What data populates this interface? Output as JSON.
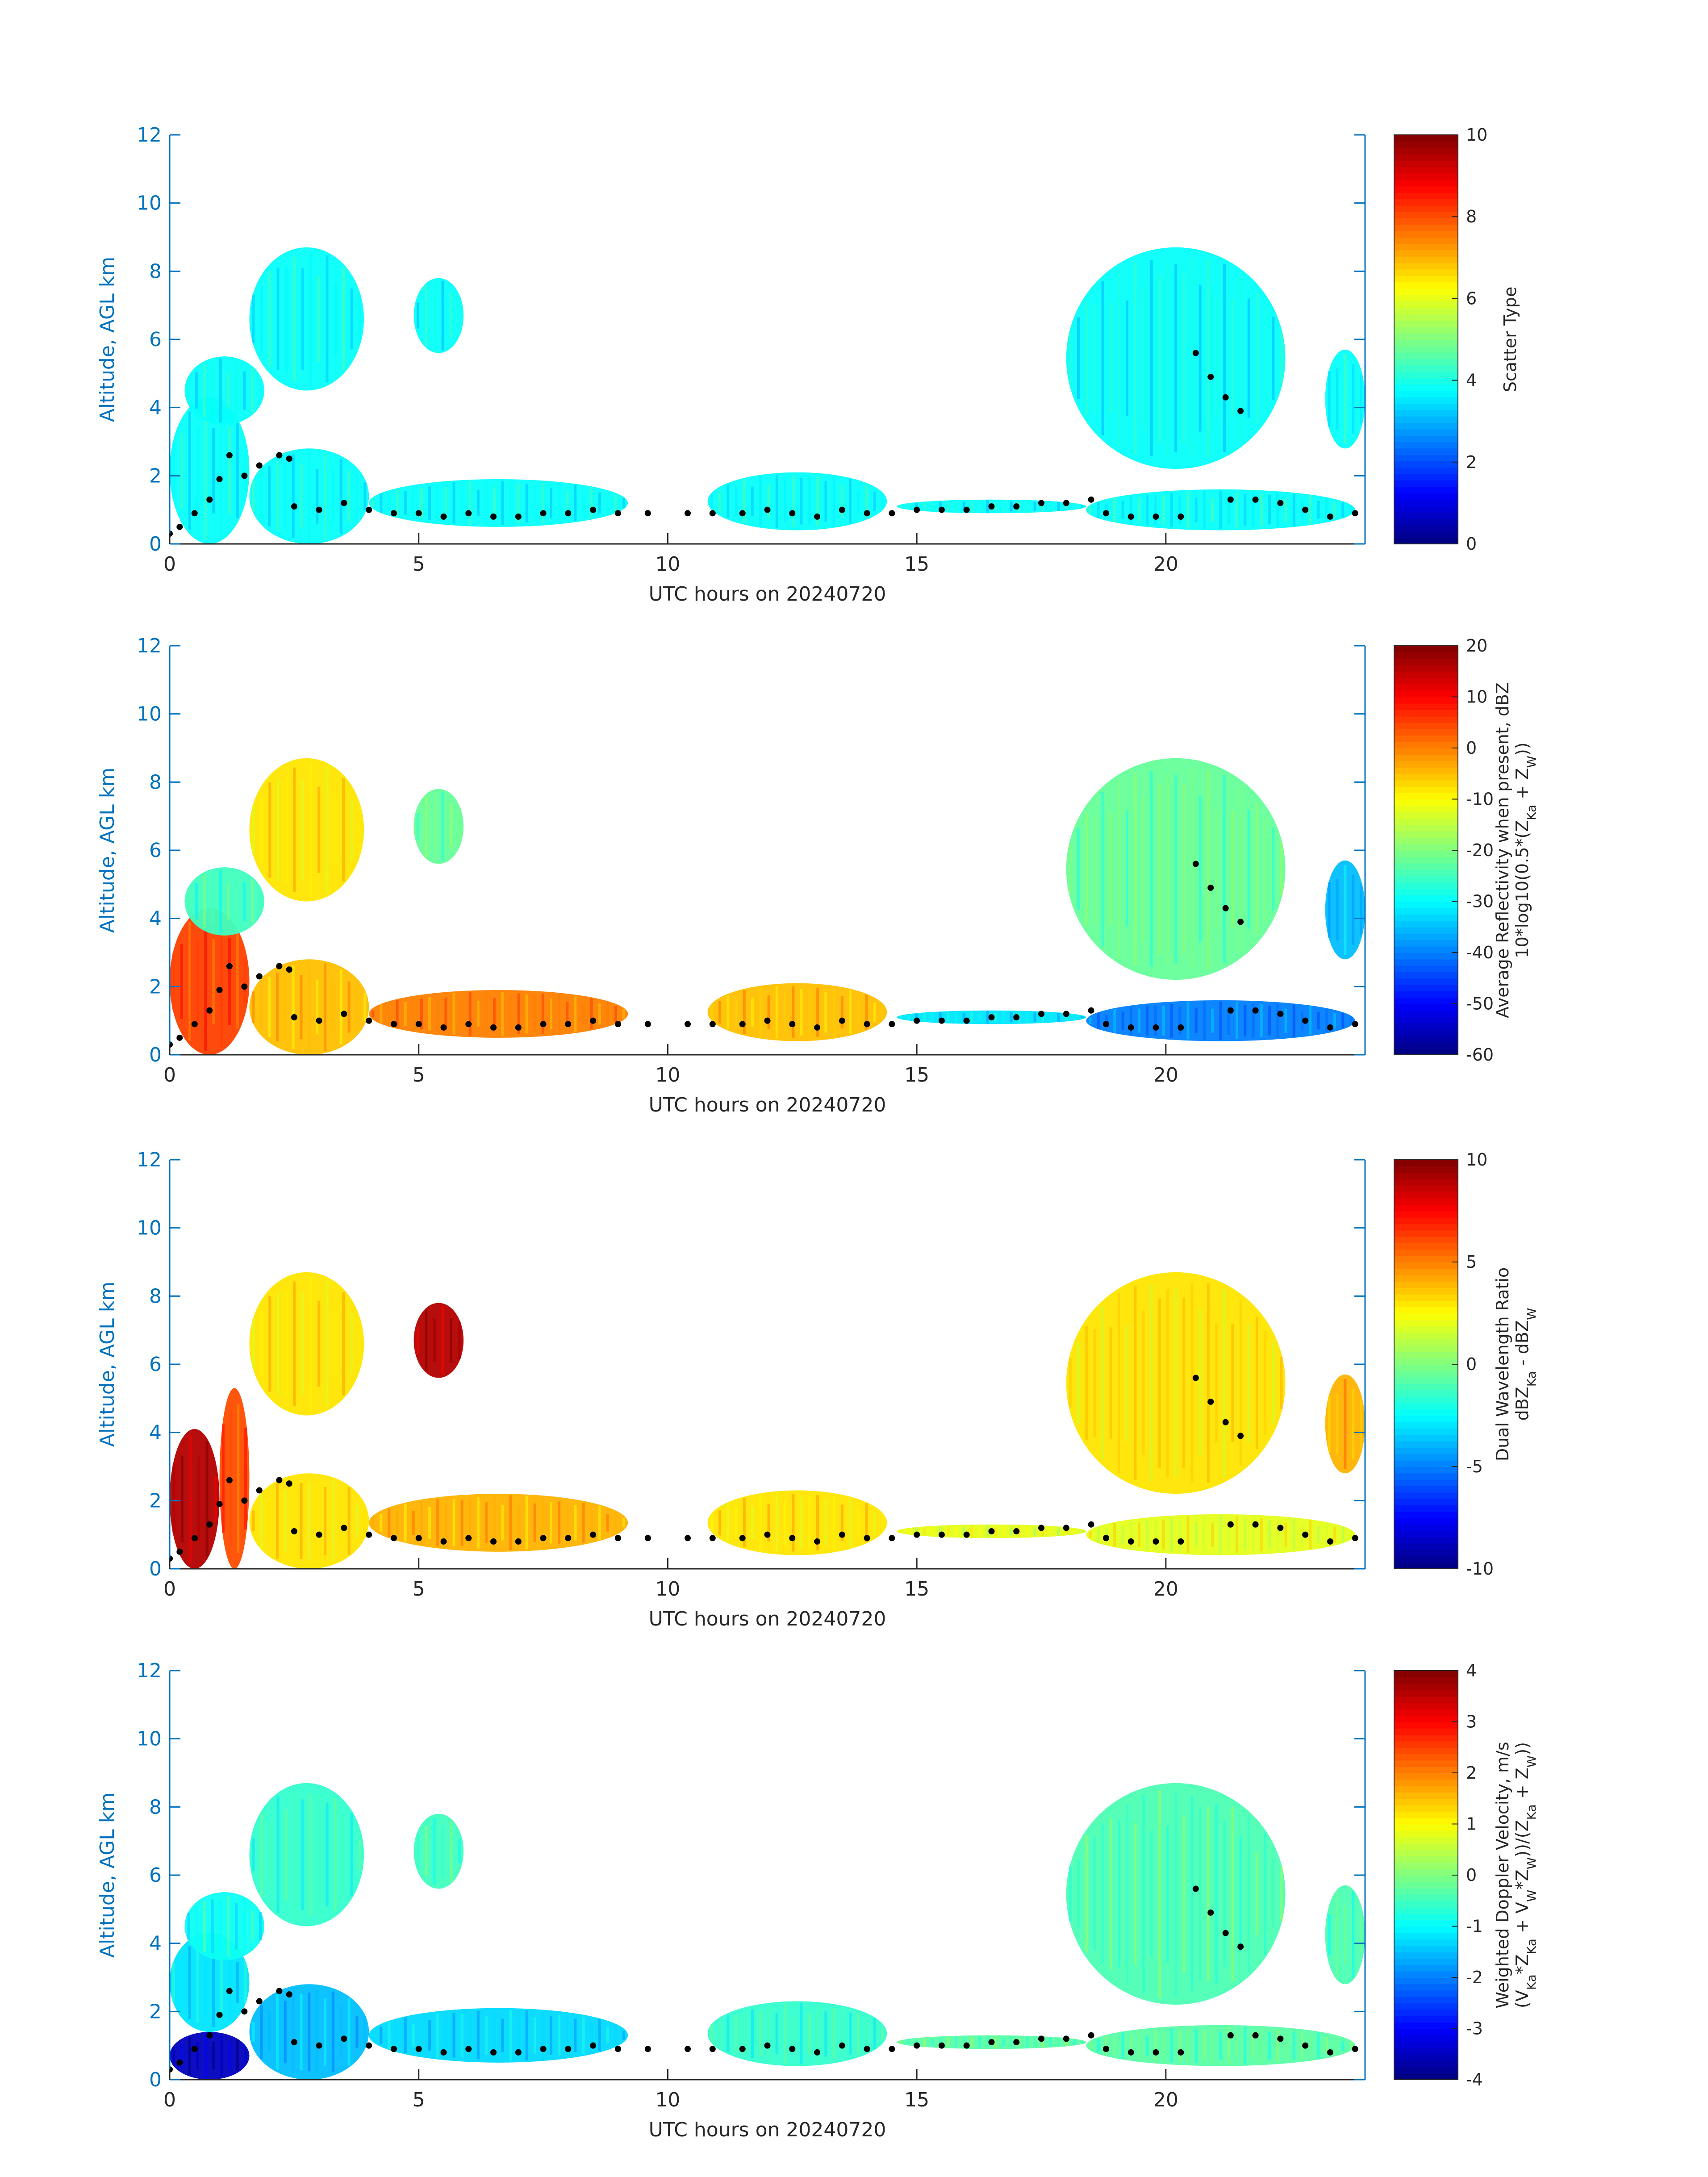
{
  "chart_data": [
    {
      "type": "heatmap",
      "xlabel": "UTC hours on 20240720",
      "ylabel": "Altitude, AGL km",
      "xlim": [
        0,
        24
      ],
      "ylim": [
        0,
        12
      ],
      "xticks": [
        "0",
        "5",
        "10",
        "15",
        "20"
      ],
      "yticks": [
        "0",
        "2",
        "4",
        "6",
        "8",
        "10",
        "12"
      ],
      "colorbar": {
        "label_lines": [
          "Scatter Type"
        ],
        "ticks": [
          "0",
          "2",
          "4",
          "6",
          "8",
          "10"
        ],
        "range": [
          0,
          10
        ],
        "colormap": "jet"
      },
      "field_value": 3.8,
      "cloud_layers": [
        {
          "x": [
            0,
            1.6
          ],
          "y": [
            0,
            4.3
          ],
          "value": 3.8
        },
        {
          "x": [
            1.6,
            4.0
          ],
          "y": [
            0,
            2.8
          ],
          "value": 3.8
        },
        {
          "x": [
            4.0,
            9.2
          ],
          "y": [
            0.5,
            1.9
          ],
          "value": 3.8
        },
        {
          "x": [
            0.3,
            1.9
          ],
          "y": [
            3.5,
            5.5
          ],
          "value": 3.8
        },
        {
          "x": [
            1.6,
            3.9
          ],
          "y": [
            4.5,
            8.7
          ],
          "value": 3.8
        },
        {
          "x": [
            4.9,
            5.9
          ],
          "y": [
            5.6,
            7.8
          ],
          "value": 3.8
        },
        {
          "x": [
            10.8,
            14.4
          ],
          "y": [
            0.4,
            2.1
          ],
          "value": 3.8
        },
        {
          "x": [
            14.6,
            18.4
          ],
          "y": [
            0.9,
            1.3
          ],
          "value": 3.8
        },
        {
          "x": [
            18.4,
            23.8
          ],
          "y": [
            0.4,
            1.6
          ],
          "value": 3.8
        },
        {
          "x": [
            18.0,
            22.4
          ],
          "y": [
            2.2,
            8.7
          ],
          "value": 3.8
        },
        {
          "x": [
            23.2,
            24.0
          ],
          "y": [
            2.8,
            5.7
          ],
          "value": 3.8
        }
      ]
    },
    {
      "type": "heatmap",
      "xlabel": "UTC hours on 20240720",
      "ylabel": "Altitude, AGL km",
      "xlim": [
        0,
        24
      ],
      "ylim": [
        0,
        12
      ],
      "xticks": [
        "0",
        "5",
        "10",
        "15",
        "20"
      ],
      "yticks": [
        "0",
        "2",
        "4",
        "6",
        "8",
        "10",
        "12"
      ],
      "colorbar": {
        "label_lines": [
          "Average Reflectivity when present, dBZ",
          "10*log10(0.5*(Z_Ka + Z_W))"
        ],
        "ticks": [
          "-60",
          "-50",
          "-40",
          "-30",
          "-20",
          "-10",
          "0",
          "10",
          "20"
        ],
        "range": [
          -60,
          20
        ],
        "colormap": "jet"
      },
      "cloud_layers": [
        {
          "x": [
            0,
            1.6
          ],
          "y": [
            0,
            4.3
          ],
          "value": 5
        },
        {
          "x": [
            1.6,
            4.0
          ],
          "y": [
            0,
            2.8
          ],
          "value": -5
        },
        {
          "x": [
            4.0,
            9.2
          ],
          "y": [
            0.5,
            1.9
          ],
          "value": 0
        },
        {
          "x": [
            0.3,
            1.9
          ],
          "y": [
            3.5,
            5.5
          ],
          "value": -25
        },
        {
          "x": [
            1.6,
            3.9
          ],
          "y": [
            4.5,
            8.7
          ],
          "value": -8
        },
        {
          "x": [
            4.9,
            5.9
          ],
          "y": [
            5.6,
            7.8
          ],
          "value": -22
        },
        {
          "x": [
            10.8,
            14.4
          ],
          "y": [
            0.4,
            2.1
          ],
          "value": -5
        },
        {
          "x": [
            14.6,
            18.4
          ],
          "y": [
            0.9,
            1.3
          ],
          "value": -32
        },
        {
          "x": [
            18.4,
            23.8
          ],
          "y": [
            0.4,
            1.6
          ],
          "value": -40
        },
        {
          "x": [
            18.0,
            22.4
          ],
          "y": [
            2.2,
            8.7
          ],
          "value": -22
        },
        {
          "x": [
            23.2,
            24.0
          ],
          "y": [
            2.8,
            5.7
          ],
          "value": -35
        }
      ]
    },
    {
      "type": "heatmap",
      "xlabel": "UTC hours on 20240720",
      "ylabel": "Altitude, AGL km",
      "xlim": [
        0,
        24
      ],
      "ylim": [
        0,
        12
      ],
      "xticks": [
        "0",
        "5",
        "10",
        "15",
        "20"
      ],
      "yticks": [
        "0",
        "2",
        "4",
        "6",
        "8",
        "10",
        "12"
      ],
      "colorbar": {
        "label_lines": [
          "Dual Wavelength Ratio",
          "dBZ_Ka - dBZ_W"
        ],
        "ticks": [
          "-10",
          "-5",
          "0",
          "5",
          "10"
        ],
        "range": [
          -10,
          10
        ],
        "colormap": "jet"
      },
      "cloud_layers": [
        {
          "x": [
            0,
            1.0
          ],
          "y": [
            0,
            4.1
          ],
          "value": 9
        },
        {
          "x": [
            1.0,
            1.6
          ],
          "y": [
            0,
            5.3
          ],
          "value": 6
        },
        {
          "x": [
            1.6,
            4.0
          ],
          "y": [
            0,
            2.8
          ],
          "value": 3
        },
        {
          "x": [
            4.0,
            9.2
          ],
          "y": [
            0.5,
            2.2
          ],
          "value": 4
        },
        {
          "x": [
            1.6,
            3.9
          ],
          "y": [
            4.5,
            8.7
          ],
          "value": 3
        },
        {
          "x": [
            4.9,
            5.9
          ],
          "y": [
            5.6,
            7.8
          ],
          "value": 9
        },
        {
          "x": [
            10.8,
            14.4
          ],
          "y": [
            0.4,
            2.3
          ],
          "value": 3
        },
        {
          "x": [
            14.6,
            18.4
          ],
          "y": [
            0.9,
            1.3
          ],
          "value": 2
        },
        {
          "x": [
            18.4,
            23.8
          ],
          "y": [
            0.4,
            1.6
          ],
          "value": 2
        },
        {
          "x": [
            18.0,
            22.4
          ],
          "y": [
            2.2,
            8.7
          ],
          "value": 3
        },
        {
          "x": [
            23.2,
            24.0
          ],
          "y": [
            2.8,
            5.7
          ],
          "value": 4
        }
      ]
    },
    {
      "type": "heatmap",
      "xlabel": "UTC hours on 20240720",
      "ylabel": "Altitude, AGL km",
      "xlim": [
        0,
        24
      ],
      "ylim": [
        0,
        12
      ],
      "xticks": [
        "0",
        "5",
        "10",
        "15",
        "20"
      ],
      "yticks": [
        "0",
        "2",
        "4",
        "6",
        "8",
        "10",
        "12"
      ],
      "colorbar": {
        "label_lines": [
          "Weighted Doppler Velocity, m/s",
          "(V_Ka*Z_Ka + V_W*Z_W))/(Z_Ka + Z_W))"
        ],
        "ticks": [
          "-4",
          "-3",
          "-2",
          "-1",
          "0",
          "1",
          "2",
          "3",
          "4"
        ],
        "range": [
          -4,
          4
        ],
        "colormap": "jet"
      },
      "cloud_layers": [
        {
          "x": [
            0,
            1.6
          ],
          "y": [
            0,
            1.4
          ],
          "value": -3.5
        },
        {
          "x": [
            0,
            1.6
          ],
          "y": [
            1.4,
            4.3
          ],
          "value": -1.2
        },
        {
          "x": [
            1.6,
            4.0
          ],
          "y": [
            0,
            2.8
          ],
          "value": -1.5
        },
        {
          "x": [
            4.0,
            9.2
          ],
          "y": [
            0.5,
            2.1
          ],
          "value": -1.3
        },
        {
          "x": [
            0.3,
            1.9
          ],
          "y": [
            3.5,
            5.5
          ],
          "value": -0.9
        },
        {
          "x": [
            1.6,
            3.9
          ],
          "y": [
            4.5,
            8.7
          ],
          "value": -0.6
        },
        {
          "x": [
            4.9,
            5.9
          ],
          "y": [
            5.6,
            7.8
          ],
          "value": -0.5
        },
        {
          "x": [
            10.8,
            14.4
          ],
          "y": [
            0.4,
            2.3
          ],
          "value": -0.6
        },
        {
          "x": [
            14.6,
            18.4
          ],
          "y": [
            0.9,
            1.3
          ],
          "value": -0.3
        },
        {
          "x": [
            18.4,
            23.8
          ],
          "y": [
            0.4,
            1.6
          ],
          "value": -0.3
        },
        {
          "x": [
            18.0,
            22.4
          ],
          "y": [
            2.2,
            8.7
          ],
          "value": -0.4
        },
        {
          "x": [
            23.2,
            24.0
          ],
          "y": [
            2.8,
            5.7
          ],
          "value": -0.4
        }
      ]
    }
  ],
  "cloud_base_km": [
    [
      0.0,
      0.3
    ],
    [
      0.2,
      0.5
    ],
    [
      0.5,
      0.9
    ],
    [
      0.8,
      1.3
    ],
    [
      1.0,
      1.9
    ],
    [
      1.2,
      2.6
    ],
    [
      1.5,
      2.0
    ],
    [
      1.8,
      2.3
    ],
    [
      2.2,
      2.6
    ],
    [
      2.4,
      2.5
    ],
    [
      2.5,
      1.1
    ],
    [
      3.0,
      1.0
    ],
    [
      3.5,
      1.2
    ],
    [
      4.0,
      1.0
    ],
    [
      4.5,
      0.9
    ],
    [
      5.0,
      0.9
    ],
    [
      5.5,
      0.8
    ],
    [
      6.0,
      0.9
    ],
    [
      6.5,
      0.8
    ],
    [
      7.0,
      0.8
    ],
    [
      7.5,
      0.9
    ],
    [
      8.0,
      0.9
    ],
    [
      8.5,
      1.0
    ],
    [
      9.0,
      0.9
    ],
    [
      9.6,
      0.9
    ],
    [
      10.4,
      0.9
    ],
    [
      10.9,
      0.9
    ],
    [
      11.5,
      0.9
    ],
    [
      12.0,
      1.0
    ],
    [
      12.5,
      0.9
    ],
    [
      13.0,
      0.8
    ],
    [
      13.5,
      1.0
    ],
    [
      14.0,
      0.9
    ],
    [
      14.5,
      0.9
    ],
    [
      15.0,
      1.0
    ],
    [
      15.5,
      1.0
    ],
    [
      16.0,
      1.0
    ],
    [
      16.5,
      1.1
    ],
    [
      17.0,
      1.1
    ],
    [
      17.5,
      1.2
    ],
    [
      18.0,
      1.2
    ],
    [
      18.5,
      1.3
    ],
    [
      18.8,
      0.9
    ],
    [
      19.3,
      0.8
    ],
    [
      19.8,
      0.8
    ],
    [
      20.3,
      0.8
    ],
    [
      20.6,
      5.6
    ],
    [
      20.9,
      4.9
    ],
    [
      21.2,
      4.3
    ],
    [
      21.5,
      3.9
    ],
    [
      21.3,
      1.3
    ],
    [
      21.8,
      1.3
    ],
    [
      22.3,
      1.2
    ],
    [
      22.8,
      1.0
    ],
    [
      23.3,
      0.8
    ],
    [
      23.8,
      0.9
    ]
  ]
}
